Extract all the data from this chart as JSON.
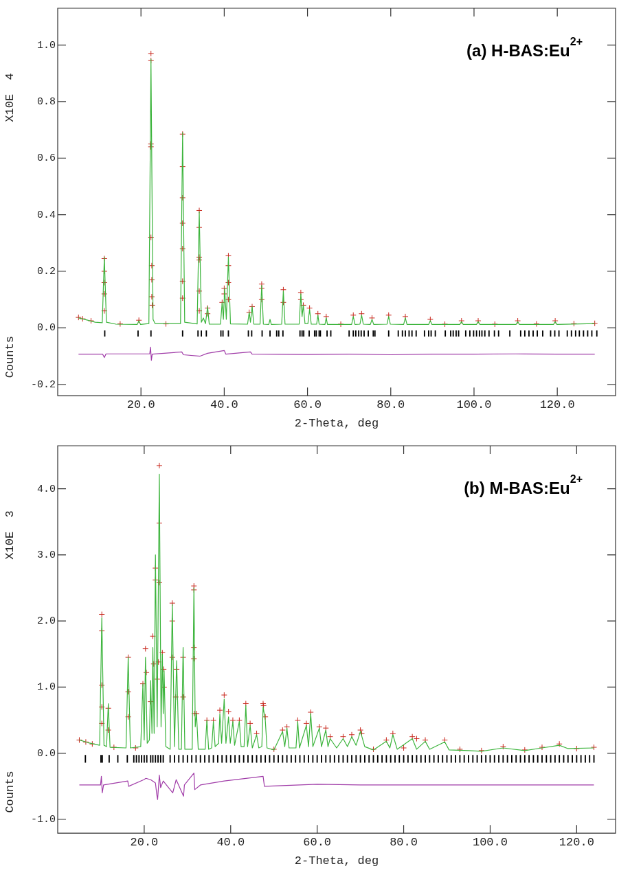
{
  "chart_data": [
    {
      "type": "line",
      "title": "(a) H-BAS:Eu$^{2+}$",
      "xlabel": "2-Theta, deg",
      "ylabel": "Counts",
      "annotations": [
        "X10E  4"
      ],
      "xlim": [
        0,
        134
      ],
      "xticks": [
        {
          "value": 20,
          "label": "20.0"
        },
        {
          "value": 40,
          "label": "40.0"
        },
        {
          "value": 60,
          "label": "60.0"
        },
        {
          "value": 80,
          "label": "80.0"
        },
        {
          "value": 100,
          "label": "100.0"
        },
        {
          "value": 120,
          "label": "120.0"
        }
      ],
      "ylim": [
        -0.24,
        1.13
      ],
      "yticks": [
        {
          "value": -0.2,
          "label": "-0.2"
        },
        {
          "value": 0,
          "label": "0.0"
        },
        {
          "value": 0.2,
          "label": "0.2"
        },
        {
          "value": 0.4,
          "label": "0.4"
        },
        {
          "value": 0.6,
          "label": "0.6"
        },
        {
          "value": 0.8,
          "label": "0.8"
        },
        {
          "value": 1.0,
          "label": "1.0"
        }
      ],
      "grid": false,
      "legend": false,
      "series": [
        {
          "marker": "none",
          "color": "#3cb43c",
          "x": [
            5,
            7,
            9,
            10.7,
            11.2,
            11.7,
            14,
            19.1,
            19.5,
            19.9,
            21.9,
            22.4,
            22.9,
            23.4,
            29.5,
            30.0,
            30.5,
            33.5,
            34.0,
            34.5,
            35.0,
            35.5,
            36.0,
            36.4,
            39.1,
            39.5,
            39.8,
            40.1,
            40.5,
            41.0,
            41.5,
            45.6,
            46.0,
            46.3,
            46.7,
            47.1,
            48.6,
            49.0,
            49.4,
            50.7,
            51.0,
            51.3,
            53.8,
            54.2,
            54.6,
            58.0,
            58.4,
            58.7,
            59.0,
            59.4,
            60.1,
            60.5,
            60.9,
            62.2,
            62.5,
            62.8,
            64.2,
            64.5,
            64.8,
            70.6,
            71.0,
            71.4,
            72.6,
            73.0,
            73.4,
            75.1,
            75.5,
            75.9,
            79.1,
            79.5,
            79.9,
            83.1,
            83.5,
            83.9,
            89.1,
            89.5,
            89.9,
            96.6,
            97.0,
            97.4,
            100.6,
            101.0,
            101.4,
            110.1,
            110.5,
            110.9,
            119.1,
            119.5,
            119.9,
            129
          ],
          "values": [
            0.035,
            0.028,
            0.02,
            0.018,
            0.25,
            0.02,
            0.013,
            0.012,
            0.025,
            0.012,
            0.015,
            0.95,
            0.03,
            0.015,
            0.015,
            0.69,
            0.02,
            0.014,
            0.41,
            0.02,
            0.035,
            0.015,
            0.075,
            0.013,
            0.013,
            0.09,
            0.03,
            0.14,
            0.03,
            0.25,
            0.014,
            0.013,
            0.055,
            0.02,
            0.075,
            0.013,
            0.013,
            0.15,
            0.013,
            0.012,
            0.03,
            0.012,
            0.013,
            0.13,
            0.013,
            0.013,
            0.12,
            0.04,
            0.08,
            0.015,
            0.015,
            0.065,
            0.013,
            0.013,
            0.045,
            0.013,
            0.012,
            0.035,
            0.012,
            0.012,
            0.04,
            0.012,
            0.013,
            0.045,
            0.013,
            0.012,
            0.03,
            0.012,
            0.013,
            0.04,
            0.013,
            0.012,
            0.035,
            0.012,
            0.012,
            0.025,
            0.012,
            0.012,
            0.022,
            0.012,
            0.012,
            0.022,
            0.012,
            0.012,
            0.022,
            0.012,
            0.012,
            0.022,
            0.012,
            0.015
          ]
        },
        {
          "type": "scatter",
          "marker": "cross",
          "color": "#c8281e",
          "x": [
            5,
            6,
            8,
            11.2,
            11.2,
            11.2,
            11.2,
            11.2,
            15,
            19.5,
            22.4,
            22.4,
            22.4,
            22.4,
            22.4,
            22.6,
            22.6,
            22.6,
            22.7,
            26,
            30.0,
            30.0,
            30.0,
            30.0,
            30.0,
            30.0,
            30.0,
            34.0,
            34.0,
            34.0,
            34.0,
            34.0,
            34.0,
            36,
            36,
            39.5,
            40,
            40,
            41,
            41,
            41,
            41,
            46,
            46.7,
            49,
            49,
            49,
            54.2,
            54.2,
            58.4,
            58.4,
            59,
            60.5,
            62.5,
            64.5,
            68,
            71,
            73,
            75.5,
            79.5,
            83.5,
            89.5,
            93,
            97,
            101,
            105,
            110.5,
            115,
            119.5,
            124,
            129
          ],
          "values": [
            0.037,
            0.032,
            0.025,
            0.245,
            0.2,
            0.16,
            0.12,
            0.06,
            0.014,
            0.027,
            0.97,
            0.945,
            0.65,
            0.64,
            0.32,
            0.22,
            0.17,
            0.11,
            0.08,
            0.014,
            0.685,
            0.57,
            0.46,
            0.37,
            0.28,
            0.165,
            0.105,
            0.415,
            0.355,
            0.25,
            0.24,
            0.13,
            0.06,
            0.07,
            0.05,
            0.09,
            0.14,
            0.12,
            0.255,
            0.22,
            0.16,
            0.1,
            0.055,
            0.075,
            0.155,
            0.14,
            0.1,
            0.135,
            0.09,
            0.125,
            0.1,
            0.08,
            0.07,
            0.05,
            0.04,
            0.013,
            0.045,
            0.05,
            0.035,
            0.045,
            0.04,
            0.03,
            0.013,
            0.025,
            0.025,
            0.013,
            0.025,
            0.014,
            0.025,
            0.015,
            0.016
          ]
        },
        {
          "type": "line",
          "marker": "none",
          "color": "#a03ca8",
          "x": [
            5,
            10.8,
            11.2,
            11.6,
            22.1,
            22.3,
            22.5,
            22.7,
            29.8,
            30.2,
            34.2,
            36,
            40,
            40.4,
            46.3,
            46.7,
            60,
            70,
            80,
            90,
            100,
            110,
            120,
            129
          ],
          "values": [
            -0.093,
            -0.093,
            -0.105,
            -0.092,
            -0.092,
            -0.068,
            -0.115,
            -0.093,
            -0.085,
            -0.095,
            -0.1,
            -0.09,
            -0.08,
            -0.093,
            -0.085,
            -0.093,
            -0.094,
            -0.093,
            -0.095,
            -0.093,
            -0.093,
            -0.092,
            -0.093,
            -0.093
          ]
        },
        {
          "type": "bar",
          "color": "#000000",
          "x": [
            11.3,
            19.3,
            22.4,
            30.0,
            33.7,
            34.5,
            35.7,
            39.2,
            39.7,
            41.0,
            45.8,
            46.6,
            49.1,
            51.0,
            52.6,
            53.1,
            54.1,
            58.2,
            58.7,
            59.1,
            60.4,
            61.7,
            62.1,
            62.8,
            63.1,
            64.7,
            65.6,
            70.0,
            71.0,
            71.6,
            72.3,
            72.9,
            73.6,
            74.6,
            75.8,
            76.2,
            79.5,
            81.8,
            82.8,
            83.5,
            84.4,
            85.1,
            86.1,
            88.1,
            89.1,
            89.7,
            90.7,
            93.1,
            94.4,
            95.0,
            95.7,
            96.3,
            98.0,
            99.0,
            99.9,
            100.6,
            101.3,
            101.9,
            102.6,
            103.6,
            104.9,
            105.9,
            108.6,
            111.2,
            112.2,
            113.2,
            114.2,
            115.2,
            116.5,
            118.4,
            119.4,
            120.4,
            122.4,
            123.4,
            124.4,
            125.3,
            126.3,
            127.3,
            128.3,
            129.5
          ],
          "base": [
            -0.03,
            -0.03,
            -0.03,
            -0.03,
            -0.03,
            -0.03,
            -0.03,
            -0.03,
            -0.03,
            -0.03,
            -0.03,
            -0.03,
            -0.03,
            -0.03,
            -0.03,
            -0.03,
            -0.03,
            -0.03,
            -0.03,
            -0.03,
            -0.03,
            -0.03,
            -0.03,
            -0.03,
            -0.03,
            -0.03,
            -0.03,
            -0.03,
            -0.03,
            -0.03,
            -0.03,
            -0.03,
            -0.03,
            -0.03,
            -0.03,
            -0.03,
            -0.03,
            -0.03,
            -0.03,
            -0.03,
            -0.03,
            -0.03,
            -0.03,
            -0.03,
            -0.03,
            -0.03,
            -0.03,
            -0.03,
            -0.03,
            -0.03,
            -0.03,
            -0.03,
            -0.03,
            -0.03,
            -0.03,
            -0.03,
            -0.03,
            -0.03,
            -0.03,
            -0.03,
            -0.03,
            -0.03,
            -0.03,
            -0.03,
            -0.03,
            -0.03,
            -0.03,
            -0.03,
            -0.03,
            -0.03,
            -0.03,
            -0.03,
            -0.03,
            -0.03,
            -0.03,
            -0.03,
            -0.03,
            -0.03,
            -0.03,
            -0.03
          ],
          "values": [
            0.02,
            0.02,
            0.02,
            0.02,
            0.02,
            0.02,
            0.02,
            0.02,
            0.02,
            0.02,
            0.02,
            0.02,
            0.02,
            0.02,
            0.02,
            0.02,
            0.02,
            0.02,
            0.02,
            0.02,
            0.02,
            0.02,
            0.02,
            0.02,
            0.02,
            0.02,
            0.02,
            0.02,
            0.02,
            0.02,
            0.02,
            0.02,
            0.02,
            0.02,
            0.02,
            0.02,
            0.02,
            0.02,
            0.02,
            0.02,
            0.02,
            0.02,
            0.02,
            0.02,
            0.02,
            0.02,
            0.02,
            0.02,
            0.02,
            0.02,
            0.02,
            0.02,
            0.02,
            0.02,
            0.02,
            0.02,
            0.02,
            0.02,
            0.02,
            0.02,
            0.02,
            0.02,
            0.02,
            0.02,
            0.02,
            0.02,
            0.02,
            0.02,
            0.02,
            0.02,
            0.02,
            0.02,
            0.02,
            0.02,
            0.02,
            0.02,
            0.02,
            0.02,
            0.02,
            0.02
          ]
        }
      ]
    },
    {
      "type": "line",
      "title": "(b) M-BAS:Eu$^{2+}$",
      "xlabel": "2-Theta, deg",
      "ylabel": "Counts",
      "annotations": [
        "X10E  3"
      ],
      "xlim": [
        0,
        129
      ],
      "xticks": [
        {
          "value": 20,
          "label": "20.0"
        },
        {
          "value": 40,
          "label": "40.0"
        },
        {
          "value": 60,
          "label": "60.0"
        },
        {
          "value": 80,
          "label": "80.0"
        },
        {
          "value": 100,
          "label": "100.0"
        },
        {
          "value": 120,
          "label": "120.0"
        }
      ],
      "ylim": [
        -1.21,
        4.65
      ],
      "yticks": [
        {
          "value": -1,
          "label": "-1.0"
        },
        {
          "value": 0,
          "label": "0.0"
        },
        {
          "value": 1,
          "label": "1.0"
        },
        {
          "value": 2,
          "label": "2.0"
        },
        {
          "value": 3,
          "label": "3.0"
        },
        {
          "value": 4,
          "label": "4.0"
        }
      ],
      "grid": false,
      "legend": false,
      "series": [
        {
          "marker": "none",
          "color": "#3cb43c",
          "x": [
            5,
            7,
            9.7,
            10.2,
            10.7,
            11.3,
            11.7,
            12.1,
            15.8,
            16.3,
            16.8,
            19.2,
            19.7,
            20.0,
            20.3,
            20.7,
            21.2,
            21.5,
            21.8,
            22.0,
            22.3,
            22.6,
            23.0,
            23.5,
            23.9,
            24.2,
            24.4,
            24.6,
            25.0,
            26.0,
            26.5,
            27.0,
            27.5,
            28.0,
            28.6,
            29.0,
            29.4,
            31.1,
            31.5,
            31.8,
            32.1,
            32.5,
            34.1,
            34.5,
            34.9,
            35.6,
            36.0,
            36.4,
            37.2,
            37.5,
            37.9,
            38.5,
            38.9,
            39.5,
            39.9,
            40.5,
            40.9,
            42.0,
            42.4,
            43.1,
            43.5,
            43.9,
            44.5,
            45.0,
            46.0,
            46.5,
            47.2,
            47.5,
            48.0,
            48.4,
            50,
            52.0,
            52.5,
            53.0,
            53.5,
            55.1,
            55.5,
            55.9,
            57.5,
            58.0,
            58.5,
            59.0,
            60.5,
            61.0,
            62.0,
            62.5,
            63.0,
            64.5,
            66.0,
            67,
            68.0,
            69,
            70.0,
            71,
            73,
            76.0,
            76.8,
            77.5,
            78.5,
            82.0,
            83,
            85.0,
            86,
            89.5,
            90.5,
            95,
            98,
            103,
            108,
            112,
            116,
            118,
            124
          ],
          "values": [
            0.2,
            0.16,
            0.12,
            2.05,
            0.12,
            0.1,
            0.75,
            0.09,
            0.08,
            1.45,
            0.08,
            0.1,
            1.05,
            0.2,
            1.45,
            0.15,
            0.2,
            1.1,
            0.3,
            1.6,
            0.3,
            3.0,
            0.4,
            4.22,
            0.4,
            1.5,
            0.6,
            1.25,
            0.1,
            0.06,
            2.25,
            0.1,
            1.4,
            0.06,
            0.06,
            1.6,
            0.06,
            0.06,
            2.5,
            0.4,
            0.6,
            0.06,
            0.06,
            0.5,
            0.06,
            0.08,
            0.48,
            0.1,
            0.15,
            0.6,
            0.15,
            0.82,
            0.15,
            0.55,
            0.15,
            0.48,
            0.12,
            0.48,
            0.1,
            0.1,
            0.72,
            0.1,
            0.42,
            0.08,
            0.28,
            0.08,
            0.1,
            0.7,
            0.5,
            0.08,
            0.05,
            0.33,
            0.1,
            0.38,
            0.08,
            0.08,
            0.48,
            0.08,
            0.42,
            0.1,
            0.6,
            0.1,
            0.38,
            0.1,
            0.35,
            0.1,
            0.22,
            0.08,
            0.22,
            0.1,
            0.25,
            0.12,
            0.33,
            0.1,
            0.05,
            0.18,
            0.08,
            0.28,
            0.06,
            0.22,
            0.06,
            0.18,
            0.06,
            0.17,
            0.05,
            0.04,
            0.03,
            0.08,
            0.04,
            0.08,
            0.12,
            0.07,
            0.08
          ]
        },
        {
          "type": "scatter",
          "marker": "cross",
          "color": "#c8281e",
          "x": [
            5,
            6.5,
            8,
            10.2,
            10.2,
            10.2,
            10.2,
            10.2,
            11.7,
            11.7,
            13,
            16.3,
            16.3,
            16.3,
            18,
            19.7,
            20.3,
            20.5,
            21.5,
            22.0,
            22.2,
            22.6,
            22.6,
            23.0,
            23.5,
            23.5,
            23.5,
            23.3,
            24.2,
            24.5,
            24.6,
            26.5,
            26.5,
            26.5,
            27.5,
            27.3,
            29.0,
            29.0,
            31.5,
            31.5,
            31.5,
            31.5,
            31.6,
            32.1,
            34.5,
            36.0,
            37.5,
            38.5,
            39.5,
            40.5,
            42.0,
            43.5,
            44.5,
            46.0,
            47.5,
            47.6,
            48.0,
            50,
            52,
            53,
            55.5,
            57.5,
            58.5,
            60.5,
            62,
            63,
            66,
            68,
            70,
            70.3,
            73,
            76,
            77.5,
            80,
            82,
            83,
            85,
            89.5,
            93,
            98,
            103,
            108,
            112,
            116,
            120,
            124
          ],
          "values": [
            0.2,
            0.17,
            0.14,
            2.1,
            1.85,
            1.03,
            0.7,
            0.45,
            0.68,
            0.35,
            0.09,
            1.45,
            0.93,
            0.55,
            0.08,
            1.05,
            1.58,
            1.22,
            0.78,
            1.77,
            1.35,
            2.8,
            2.62,
            1.12,
            4.35,
            3.48,
            2.58,
            1.38,
            1.52,
            1.27,
            1.0,
            2.27,
            2.0,
            1.45,
            1.27,
            0.85,
            1.45,
            0.85,
            2.53,
            2.47,
            1.6,
            1.43,
            0.6,
            0.6,
            0.5,
            0.5,
            0.65,
            0.88,
            0.63,
            0.5,
            0.5,
            0.75,
            0.45,
            0.3,
            0.75,
            0.72,
            0.55,
            0.06,
            0.35,
            0.4,
            0.5,
            0.45,
            0.62,
            0.4,
            0.38,
            0.25,
            0.25,
            0.28,
            0.35,
            0.3,
            0.06,
            0.2,
            0.3,
            0.08,
            0.25,
            0.22,
            0.2,
            0.2,
            0.06,
            0.04,
            0.1,
            0.05,
            0.09,
            0.14,
            0.07,
            0.09
          ]
        },
        {
          "type": "line",
          "marker": "none",
          "color": "#a03ca8",
          "x": [
            5,
            9.9,
            10.1,
            10.3,
            10.6,
            16.2,
            16.4,
            19.9,
            20.4,
            21.5,
            22.6,
            22.9,
            23.1,
            23.5,
            23.8,
            24.4,
            26.6,
            27.4,
            29.1,
            29.3,
            31.5,
            31.7,
            33,
            38.5,
            47.5,
            47.8,
            60,
            70,
            80,
            90,
            100,
            110,
            124
          ],
          "values": [
            -0.48,
            -0.48,
            -0.35,
            -0.6,
            -0.48,
            -0.42,
            -0.5,
            -0.4,
            -0.38,
            -0.4,
            -0.45,
            -0.62,
            -0.7,
            -0.33,
            -0.52,
            -0.42,
            -0.6,
            -0.4,
            -0.65,
            -0.48,
            -0.3,
            -0.55,
            -0.48,
            -0.42,
            -0.35,
            -0.5,
            -0.47,
            -0.48,
            -0.48,
            -0.48,
            -0.48,
            -0.48,
            -0.48
          ]
        },
        {
          "type": "bar",
          "color": "#000000",
          "x": [
            6.4,
            10.0,
            10.3,
            11.9,
            13.9,
            16.1,
            17.6,
            18.2,
            18.8,
            19.4,
            20.0,
            20.6,
            21.5,
            22.0,
            22.6,
            23.2,
            23.8,
            24.4,
            26,
            27,
            28,
            29,
            30,
            31,
            32,
            33,
            34,
            35,
            36,
            37,
            38,
            39,
            40,
            41,
            42,
            43,
            44,
            45,
            46,
            47,
            48,
            49,
            50,
            51,
            52,
            53,
            54,
            55,
            56,
            57,
            58,
            59,
            60,
            61,
            62,
            63,
            64,
            65,
            66,
            67,
            68,
            69,
            70,
            71,
            72,
            73,
            74,
            75,
            76,
            77,
            78,
            79,
            80,
            81,
            82,
            83,
            84,
            85,
            86,
            87,
            88,
            89,
            90,
            91,
            92,
            93,
            94,
            95,
            96,
            97,
            98,
            99,
            100,
            101,
            102,
            103,
            104,
            105,
            106,
            107,
            108,
            109,
            110,
            111,
            112,
            113,
            114,
            115,
            116,
            117,
            118,
            119,
            120,
            121,
            122,
            123,
            124
          ],
          "base": [
            -0.14,
            -0.14,
            -0.14,
            -0.14,
            -0.14,
            -0.14,
            -0.14,
            -0.14,
            -0.14,
            -0.14,
            -0.14,
            -0.14,
            -0.14,
            -0.14,
            -0.14,
            -0.14,
            -0.14,
            -0.14,
            -0.14,
            -0.14,
            -0.14,
            -0.14,
            -0.14,
            -0.14,
            -0.14,
            -0.14,
            -0.14,
            -0.14,
            -0.14,
            -0.14,
            -0.14,
            -0.14,
            -0.14,
            -0.14,
            -0.14,
            -0.14,
            -0.14,
            -0.14,
            -0.14,
            -0.14,
            -0.14,
            -0.14,
            -0.14,
            -0.14,
            -0.14,
            -0.14,
            -0.14,
            -0.14,
            -0.14,
            -0.14,
            -0.14,
            -0.14,
            -0.14,
            -0.14,
            -0.14,
            -0.14,
            -0.14,
            -0.14,
            -0.14,
            -0.14,
            -0.14,
            -0.14,
            -0.14,
            -0.14,
            -0.14,
            -0.14,
            -0.14,
            -0.14,
            -0.14,
            -0.14,
            -0.14,
            -0.14,
            -0.14,
            -0.14,
            -0.14,
            -0.14,
            -0.14,
            -0.14,
            -0.14,
            -0.14,
            -0.14,
            -0.14,
            -0.14,
            -0.14,
            -0.14,
            -0.14,
            -0.14,
            -0.14,
            -0.14,
            -0.14,
            -0.14,
            -0.14,
            -0.14,
            -0.14,
            -0.14,
            -0.14,
            -0.14,
            -0.14,
            -0.14,
            -0.14,
            -0.14,
            -0.14,
            -0.14,
            -0.14,
            -0.14,
            -0.14,
            -0.14,
            -0.14,
            -0.14,
            -0.14,
            -0.14,
            -0.14,
            -0.14,
            -0.14,
            -0.14,
            -0.14,
            -0.14
          ],
          "values": [
            0.11,
            0.11,
            0.11,
            0.11,
            0.11,
            0.11,
            0.11,
            0.11,
            0.11,
            0.11,
            0.11,
            0.11,
            0.11,
            0.11,
            0.11,
            0.11,
            0.11,
            0.11,
            0.11,
            0.11,
            0.11,
            0.11,
            0.11,
            0.11,
            0.11,
            0.11,
            0.11,
            0.11,
            0.11,
            0.11,
            0.11,
            0.11,
            0.11,
            0.11,
            0.11,
            0.11,
            0.11,
            0.11,
            0.11,
            0.11,
            0.11,
            0.11,
            0.11,
            0.11,
            0.11,
            0.11,
            0.11,
            0.11,
            0.11,
            0.11,
            0.11,
            0.11,
            0.11,
            0.11,
            0.11,
            0.11,
            0.11,
            0.11,
            0.11,
            0.11,
            0.11,
            0.11,
            0.11,
            0.11,
            0.11,
            0.11,
            0.11,
            0.11,
            0.11,
            0.11,
            0.11,
            0.11,
            0.11,
            0.11,
            0.11,
            0.11,
            0.11,
            0.11,
            0.11,
            0.11,
            0.11,
            0.11,
            0.11,
            0.11,
            0.11,
            0.11,
            0.11,
            0.11,
            0.11,
            0.11,
            0.11,
            0.11,
            0.11,
            0.11,
            0.11,
            0.11,
            0.11,
            0.11,
            0.11,
            0.11,
            0.11,
            0.11,
            0.11,
            0.11,
            0.11,
            0.11,
            0.11,
            0.11,
            0.11,
            0.11,
            0.11,
            0.11,
            0.11,
            0.11,
            0.11,
            0.11,
            0.11
          ]
        }
      ]
    }
  ]
}
